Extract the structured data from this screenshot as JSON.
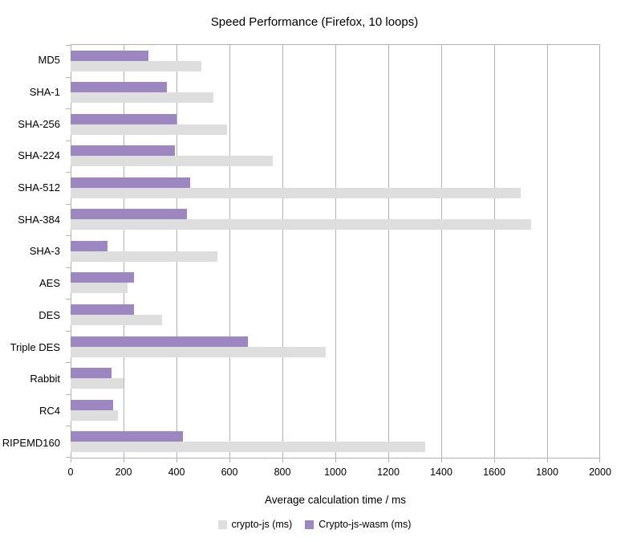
{
  "chart_data": {
    "type": "bar",
    "orientation": "horizontal",
    "title": "Speed Performance (Firefox, 10 loops)",
    "xlabel": "Average calculation time / ms",
    "categories": [
      "MD5",
      "SHA-1",
      "SHA-256",
      "SHA-224",
      "SHA-512",
      "SHA-384",
      "SHA-3",
      "AES",
      "DES",
      "Triple DES",
      "Rabbit",
      "RC4",
      "RIPEMD160"
    ],
    "series": [
      {
        "name": "crypto-js (ms)",
        "color": "#dedede",
        "values": [
          495,
          540,
          590,
          765,
          1700,
          1740,
          555,
          215,
          345,
          965,
          200,
          180,
          1340
        ]
      },
      {
        "name": "Crypto-js-wasm (ms)",
        "color": "#9c87c0",
        "values": [
          295,
          365,
          400,
          395,
          450,
          440,
          140,
          240,
          240,
          670,
          155,
          160,
          425
        ]
      }
    ],
    "xlim": [
      0,
      2000
    ],
    "x_ticks": [
      0,
      200,
      400,
      600,
      800,
      1000,
      1200,
      1400,
      1600,
      1800,
      2000
    ],
    "grid": "vertical",
    "legend_position": "bottom",
    "colors": {
      "gridline": "#b3b3b3",
      "text": "#000000",
      "background": "#ffffff"
    }
  }
}
